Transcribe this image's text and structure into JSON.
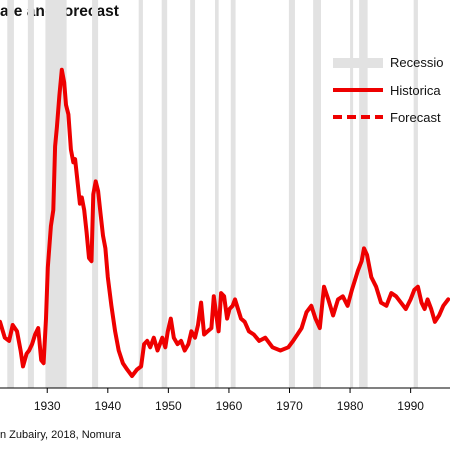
{
  "title": "ate and forecast",
  "source": "n Zubairy, 2018, Nomura",
  "colors": {
    "historical": "#ee0000",
    "recession": "#e2e2e2",
    "axis": "#000000"
  },
  "legend": {
    "placement": "top-right",
    "items": [
      {
        "label": "Recessio",
        "style": "band"
      },
      {
        "label": "Historica",
        "style": "solid"
      },
      {
        "label": "Forecast",
        "style": "dashed"
      }
    ]
  },
  "chart_data": {
    "type": "line",
    "title": "ate and forecast",
    "xlim": [
      1922.2,
      1996.5
    ],
    "ylim": [
      0,
      100
    ],
    "grid": false,
    "xticks": [
      {
        "value": 1930,
        "label": "1930"
      },
      {
        "value": 1940,
        "label": "1940"
      },
      {
        "value": 1950,
        "label": "1950"
      },
      {
        "value": 1960,
        "label": "1960"
      },
      {
        "value": 1970,
        "label": "1970"
      },
      {
        "value": 1980,
        "label": "1980"
      },
      {
        "value": 1990,
        "label": "1990"
      }
    ],
    "recessions": [
      [
        1923.4,
        1924.5
      ],
      [
        1926.8,
        1927.8
      ],
      [
        1929.7,
        1933.2
      ],
      [
        1937.4,
        1938.4
      ],
      [
        1945.1,
        1945.8
      ],
      [
        1948.9,
        1949.8
      ],
      [
        1953.6,
        1954.4
      ],
      [
        1957.7,
        1958.3
      ],
      [
        1960.3,
        1961.1
      ],
      [
        1969.9,
        1970.9
      ],
      [
        1973.9,
        1975.2
      ],
      [
        1980.0,
        1980.5
      ],
      [
        1981.5,
        1982.9
      ],
      [
        1990.5,
        1991.2
      ]
    ],
    "series": [
      {
        "name": "Historica",
        "style": "solid",
        "x": [
          1922.2,
          1923.0,
          1923.7,
          1924.3,
          1925.0,
          1925.6,
          1926.0,
          1926.6,
          1927.0,
          1927.5,
          1928.0,
          1928.5,
          1929.0,
          1929.4,
          1929.8,
          1930.1,
          1930.6,
          1931.0,
          1931.3,
          1931.6,
          1932.0,
          1932.4,
          1932.8,
          1933.1,
          1933.5,
          1933.9,
          1934.3,
          1934.6,
          1935.0,
          1935.4,
          1935.7,
          1936.1,
          1936.5,
          1936.9,
          1937.3,
          1937.6,
          1938.0,
          1938.4,
          1938.8,
          1939.2,
          1939.6,
          1940.0,
          1940.6,
          1941.2,
          1941.8,
          1942.5,
          1943.2,
          1944.0,
          1944.8,
          1945.5,
          1946.0,
          1946.5,
          1947.0,
          1947.6,
          1948.2,
          1948.6,
          1949.0,
          1949.5,
          1949.9,
          1950.4,
          1950.9,
          1951.5,
          1952.1,
          1952.7,
          1953.3,
          1953.8,
          1954.4,
          1954.9,
          1955.4,
          1955.9,
          1956.5,
          1957.1,
          1957.5,
          1958.0,
          1958.3,
          1958.7,
          1959.2,
          1959.7,
          1960.1,
          1960.6,
          1961.0,
          1961.5,
          1962.0,
          1962.6,
          1963.3,
          1964.1,
          1965.0,
          1966.0,
          1967.2,
          1968.5,
          1969.8,
          1970.6,
          1971.3,
          1972.0,
          1972.8,
          1973.6,
          1974.3,
          1975.0,
          1975.7,
          1976.4,
          1977.2,
          1978.0,
          1978.8,
          1979.6,
          1980.3,
          1980.8,
          1981.3,
          1981.9,
          1982.3,
          1982.8,
          1983.5,
          1984.3,
          1985.1,
          1986.0,
          1986.8,
          1987.6,
          1988.4,
          1989.2,
          1990.0,
          1990.6,
          1991.2,
          1991.8,
          1992.3,
          1992.8,
          1993.4,
          1994.0,
          1994.7,
          1995.4,
          1996.2
        ],
        "y": [
          17,
          12,
          11,
          16,
          14,
          8,
          3,
          7,
          8,
          10,
          13,
          15,
          5,
          4,
          18,
          34,
          47,
          52,
          72,
          78,
          88,
          96,
          92,
          85,
          82,
          71,
          67,
          68,
          61,
          54,
          56,
          52,
          45,
          37,
          36,
          57,
          61,
          58,
          51,
          44,
          40,
          31,
          22,
          14,
          8,
          4,
          2,
          0,
          2,
          3,
          10,
          11,
          9,
          12,
          8,
          10,
          12,
          9,
          14,
          18,
          12,
          10,
          11,
          8,
          10,
          14,
          12,
          16,
          23,
          13,
          14,
          15,
          25,
          18,
          14,
          26,
          25,
          18,
          21,
          22,
          24,
          21,
          18,
          17,
          14,
          13,
          11,
          12,
          9,
          8,
          9,
          11,
          13,
          15,
          20,
          22,
          18,
          15,
          28,
          24,
          19,
          24,
          25,
          22,
          27,
          30,
          33,
          36,
          40,
          38,
          31,
          28,
          23,
          22,
          26,
          25,
          23,
          21,
          24,
          27,
          28,
          23,
          21,
          24,
          21,
          17,
          19,
          22,
          24
        ]
      }
    ]
  }
}
